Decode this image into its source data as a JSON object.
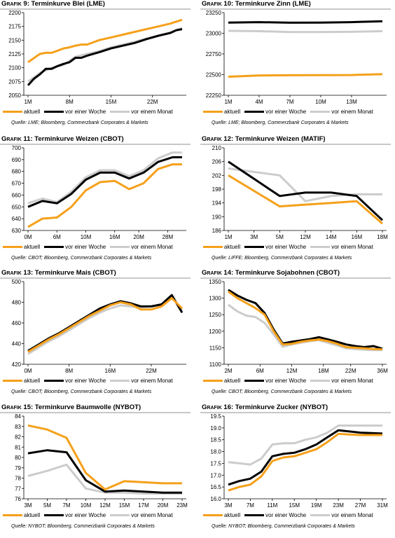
{
  "colors": {
    "aktuell": "#f5a01a",
    "woche": "#000000",
    "monat": "#cccccc"
  },
  "legend": {
    "aktuell": "aktuell",
    "woche": "vor einer Woche",
    "monat": "vor einem Monat"
  },
  "chart_data": [
    {
      "type": "line",
      "title_prefix": "Grafik 9:",
      "title": "Terminkurve Blei (LME)",
      "source": "Quelle: LME; Bloomberg, Commerzbank Corporates & Markets",
      "ylim": [
        2050,
        2200
      ],
      "yticks": [
        "2200",
        "2175",
        "2150",
        "2125",
        "2100",
        "2075",
        "2050"
      ],
      "xticks": [
        "1M",
        "8M",
        "15M",
        "22M"
      ],
      "xlim": [
        0,
        26
      ],
      "xtick_pos": [
        0,
        7,
        14,
        21
      ],
      "series": [
        {
          "name": "aktuell",
          "x": [
            0,
            2,
            3,
            4,
            5,
            6,
            7,
            8,
            9,
            10,
            12,
            14,
            16,
            18,
            20,
            22,
            24,
            26
          ],
          "values": [
            2110,
            2125,
            2127,
            2127,
            2131,
            2135,
            2137,
            2140,
            2142,
            2142,
            2150,
            2155,
            2160,
            2165,
            2170,
            2175,
            2180,
            2187
          ]
        },
        {
          "name": "vor einer Woche",
          "x": [
            0,
            1,
            2,
            3,
            4,
            5,
            6,
            7,
            8,
            9,
            10,
            12,
            14,
            16,
            18,
            20,
            22,
            24,
            25,
            26
          ],
          "values": [
            2068,
            2080,
            2088,
            2098,
            2098,
            2103,
            2107,
            2110,
            2118,
            2118,
            2122,
            2128,
            2135,
            2140,
            2145,
            2152,
            2158,
            2163,
            2168,
            2170
          ]
        },
        {
          "name": "vor einem Monat",
          "x": [
            0,
            2,
            4,
            6,
            8,
            10,
            12,
            14,
            16,
            18,
            20,
            22,
            24,
            26
          ],
          "values": [
            2075,
            2090,
            2100,
            2105,
            2120,
            2125,
            2130,
            2137,
            2142,
            2147,
            2153,
            2158,
            2164,
            2172
          ]
        }
      ]
    },
    {
      "type": "line",
      "title_prefix": "Grafik 10:",
      "title": "Terminkurve Zinn (LME)",
      "source": "Quelle: LME; Bloomberg, Commerzbank Corporates & Markets",
      "ylim": [
        22250,
        23250
      ],
      "yticks": [
        "23250",
        "23000",
        "22750",
        "22500",
        "22250"
      ],
      "xticks": [
        "1M",
        "4M",
        "7M",
        "10M",
        "13M"
      ],
      "xlim": [
        0,
        15
      ],
      "xtick_pos": [
        0,
        3,
        6,
        9,
        12
      ],
      "series": [
        {
          "name": "aktuell",
          "x": [
            0,
            3,
            6,
            9,
            12,
            15
          ],
          "values": [
            22475,
            22490,
            22492,
            22493,
            22495,
            22505
          ]
        },
        {
          "name": "vor einer Woche",
          "x": [
            0,
            3,
            6,
            9,
            12,
            15
          ],
          "values": [
            23130,
            23135,
            23128,
            23130,
            23135,
            23145
          ]
        },
        {
          "name": "vor einem Monat",
          "x": [
            0,
            3,
            6,
            9,
            12,
            15
          ],
          "values": [
            23030,
            23025,
            23015,
            23015,
            23018,
            23025
          ]
        }
      ]
    },
    {
      "type": "line",
      "title_prefix": "Grafik 11:",
      "title": "Terminkurve Weizen (CBOT)",
      "source": "Quelle: CBOT; Bloomberg, Commerzbank Corporates & Markets",
      "ylim": [
        630,
        700
      ],
      "yticks": [
        "700",
        "690",
        "680",
        "670",
        "660",
        "650",
        "640",
        "630"
      ],
      "xticks": [
        "0M",
        "6M",
        "10M",
        "16M",
        "20M",
        "28M"
      ],
      "xlim": [
        0,
        32
      ],
      "xtick_pos": [
        0,
        6,
        12,
        18,
        23,
        29
      ],
      "series": [
        {
          "name": "aktuell",
          "x": [
            0,
            3,
            6,
            9,
            12,
            15,
            18,
            21,
            24,
            27,
            30,
            32
          ],
          "values": [
            633,
            640,
            641,
            650,
            664,
            671,
            672,
            665,
            670,
            682,
            686,
            686
          ]
        },
        {
          "name": "vor einer Woche",
          "x": [
            0,
            3,
            6,
            9,
            12,
            15,
            18,
            21,
            24,
            27,
            30,
            32
          ],
          "values": [
            650,
            655,
            653,
            661,
            673,
            679,
            679,
            674,
            679,
            688,
            692,
            692
          ]
        },
        {
          "name": "vor einem Monat",
          "x": [
            0,
            3,
            6,
            9,
            12,
            15,
            18,
            21,
            24,
            27,
            30,
            32
          ],
          "values": [
            653,
            657,
            654,
            663,
            675,
            681,
            681,
            676,
            681,
            691,
            696,
            696
          ]
        }
      ]
    },
    {
      "type": "line",
      "title_prefix": "Grafik 12:",
      "title": "Terminkurve Weizen (MATIF)",
      "source": "Quelle: LIFFE; Bloomberg, Commerzbank Corporates & Markets",
      "ylim": [
        186,
        210
      ],
      "yticks": [
        "210",
        "206",
        "202",
        "198",
        "194",
        "190",
        "186"
      ],
      "xticks": [
        "1M",
        "3M",
        "5M",
        "12M",
        "14M",
        "16M",
        "18M"
      ],
      "xlim": [
        0,
        6
      ],
      "xtick_pos": [
        0,
        1,
        2,
        3,
        4,
        5,
        6
      ],
      "series": [
        {
          "name": "aktuell",
          "x": [
            0,
            1,
            2,
            3,
            4,
            5,
            6
          ],
          "values": [
            202,
            197.5,
            193,
            193.5,
            194,
            194.5,
            188
          ]
        },
        {
          "name": "vor einer Woche",
          "x": [
            0,
            1,
            2,
            3,
            4,
            5,
            6
          ],
          "values": [
            206,
            201,
            196,
            197,
            197,
            196,
            189
          ]
        },
        {
          "name": "vor einem Monat",
          "x": [
            0,
            1,
            2,
            3,
            4,
            5,
            6
          ],
          "values": [
            204,
            203,
            202,
            194.5,
            196,
            196.5,
            196.5
          ]
        }
      ]
    },
    {
      "type": "line",
      "title_prefix": "Grafik 13:",
      "title": "Terminkurve Mais (CBOT)",
      "source": "Quelle: CBOT; Bloomberg, Commerzbank Corporates & Markets",
      "ylim": [
        420,
        500
      ],
      "yticks": [
        "500",
        "480",
        "460",
        "440",
        "420"
      ],
      "xticks": [
        "0M",
        "8M",
        "16M",
        "22M"
      ],
      "xlim": [
        0,
        30
      ],
      "xtick_pos": [
        0,
        8,
        16,
        24
      ],
      "series": [
        {
          "name": "aktuell",
          "x": [
            0,
            2,
            4,
            6,
            8,
            10,
            12,
            14,
            16,
            18,
            20,
            22,
            24,
            26,
            28,
            30
          ],
          "values": [
            432,
            438,
            444,
            449,
            455,
            461,
            467,
            472,
            477,
            480,
            478,
            473,
            473,
            476,
            484,
            474
          ]
        },
        {
          "name": "vor einer Woche",
          "x": [
            0,
            2,
            4,
            6,
            8,
            10,
            12,
            14,
            16,
            18,
            20,
            22,
            24,
            26,
            28,
            30
          ],
          "values": [
            433,
            439,
            445,
            450,
            456,
            462,
            468,
            474,
            478,
            481,
            479,
            476,
            476,
            478,
            487,
            470
          ]
        },
        {
          "name": "vor einem Monat",
          "x": [
            0,
            2,
            4,
            6,
            8,
            10,
            12,
            14,
            16,
            18,
            20,
            22,
            24,
            26,
            28,
            30
          ],
          "values": [
            430,
            436,
            442,
            447,
            453,
            459,
            465,
            470,
            474,
            477,
            476,
            475,
            476,
            478,
            486,
            472
          ]
        }
      ]
    },
    {
      "type": "line",
      "title_prefix": "Grafik 14:",
      "title": "Terminkurve Sojabohnen (CBOT)",
      "source": "Quelle: CBOT; Bloomberg, Commerzbank Corporates & Markets",
      "ylim": [
        1100,
        1350
      ],
      "yticks": [
        "1350",
        "1300",
        "1250",
        "1200",
        "1150",
        "1100"
      ],
      "xticks": [
        "2M",
        "6M",
        "12M",
        "18M",
        "22M",
        "36M"
      ],
      "xlim": [
        0,
        34
      ],
      "xtick_pos": [
        0,
        7,
        14,
        21,
        27,
        34
      ],
      "series": [
        {
          "name": "aktuell",
          "x": [
            0,
            2,
            4,
            6,
            8,
            10,
            12,
            14,
            16,
            18,
            20,
            22,
            24,
            26,
            28,
            30,
            32,
            34
          ],
          "values": [
            1320,
            1300,
            1285,
            1270,
            1250,
            1200,
            1160,
            1162,
            1168,
            1172,
            1175,
            1170,
            1162,
            1152,
            1150,
            1148,
            1146,
            1145
          ]
        },
        {
          "name": "vor einer Woche",
          "x": [
            0,
            2,
            4,
            6,
            8,
            10,
            12,
            14,
            16,
            18,
            20,
            22,
            24,
            26,
            28,
            30,
            32,
            34
          ],
          "values": [
            1325,
            1308,
            1295,
            1285,
            1255,
            1205,
            1163,
            1168,
            1172,
            1176,
            1182,
            1175,
            1168,
            1160,
            1155,
            1152,
            1155,
            1147
          ]
        },
        {
          "name": "vor einem Monat",
          "x": [
            0,
            2,
            4,
            6,
            8,
            10,
            12,
            14,
            16,
            18,
            20,
            22,
            24,
            26,
            28,
            30,
            32,
            34
          ],
          "values": [
            1280,
            1260,
            1247,
            1243,
            1225,
            1190,
            1153,
            1160,
            1165,
            1170,
            1173,
            1165,
            1157,
            1148,
            1146,
            1144,
            1143,
            1143
          ]
        }
      ]
    },
    {
      "type": "line",
      "title_prefix": "Grafik 15:",
      "title": "Terminkurve Baumwolle (NYBOT)",
      "source": "Quelle: NYBOT; Bloomberg, Commerzbank Corporates & Markets",
      "ylim": [
        76,
        84
      ],
      "yticks": [
        "84",
        "83",
        "82",
        "81",
        "80",
        "79",
        "78",
        "77",
        "76"
      ],
      "xticks": [
        "3M",
        "5M",
        "7M",
        "10M",
        "12M",
        "15M",
        "17M",
        "20M",
        "23M"
      ],
      "xlim": [
        0,
        8
      ],
      "xtick_pos": [
        0,
        1,
        2,
        3,
        4,
        5,
        6,
        7,
        8
      ],
      "series": [
        {
          "name": "aktuell",
          "x": [
            0,
            1,
            2,
            3,
            4,
            5,
            6,
            7,
            8
          ],
          "values": [
            83.1,
            82.7,
            81.9,
            78.5,
            76.9,
            77.7,
            77.6,
            77.5,
            77.5
          ]
        },
        {
          "name": "vor einer Woche",
          "x": [
            0,
            1,
            2,
            3,
            4,
            5,
            6,
            7,
            8
          ],
          "values": [
            80.4,
            80.7,
            80.5,
            77.8,
            76.7,
            76.8,
            76.7,
            76.6,
            76.6
          ]
        },
        {
          "name": "vor einem Monat",
          "x": [
            0,
            1,
            2,
            3,
            4,
            5,
            6,
            7,
            8
          ],
          "values": [
            78.2,
            78.7,
            79.3,
            77,
            76.6,
            76.6,
            76.5,
            76.5,
            76.5
          ]
        }
      ]
    },
    {
      "type": "line",
      "title_prefix": "Grafik 16:",
      "title": "Terminkurve Zucker (NYBOT)",
      "source": "Quelle: NYBOT; Bloomberg, Commerzbank Corporates & Markets",
      "ylim": [
        16,
        19.5
      ],
      "yticks": [
        "19.5",
        "19.0",
        "18.5",
        "18.0",
        "17.5",
        "17.0",
        "16.5",
        "16.0"
      ],
      "xticks": [
        "3M",
        "7M",
        "11M",
        "15M",
        "19M",
        "23M",
        "27M",
        "31M"
      ],
      "xlim": [
        0,
        28
      ],
      "xtick_pos": [
        0,
        4,
        8,
        12,
        16,
        20,
        24,
        28
      ],
      "series": [
        {
          "name": "aktuell",
          "x": [
            0,
            2,
            4,
            6,
            8,
            10,
            12,
            14,
            16,
            18,
            20,
            22,
            24,
            26,
            28
          ],
          "values": [
            16.35,
            16.5,
            16.6,
            16.95,
            17.6,
            17.75,
            17.8,
            17.95,
            18.1,
            18.4,
            18.75,
            18.72,
            18.7,
            18.7,
            18.7
          ]
        },
        {
          "name": "vor einer Woche",
          "x": [
            0,
            2,
            4,
            6,
            8,
            10,
            12,
            14,
            16,
            18,
            20,
            22,
            24,
            26,
            28
          ],
          "values": [
            16.6,
            16.75,
            16.85,
            17.15,
            17.8,
            17.9,
            17.95,
            18.1,
            18.3,
            18.6,
            18.9,
            18.85,
            18.8,
            18.78,
            18.76
          ]
        },
        {
          "name": "vor einem Monat",
          "x": [
            0,
            2,
            4,
            6,
            8,
            10,
            12,
            14,
            16,
            18,
            20,
            22,
            24,
            26,
            28
          ],
          "values": [
            17.55,
            17.5,
            17.45,
            17.7,
            18.3,
            18.35,
            18.35,
            18.5,
            18.6,
            18.8,
            19.1,
            19.1,
            19.1,
            19.1,
            19.1
          ]
        }
      ]
    }
  ]
}
